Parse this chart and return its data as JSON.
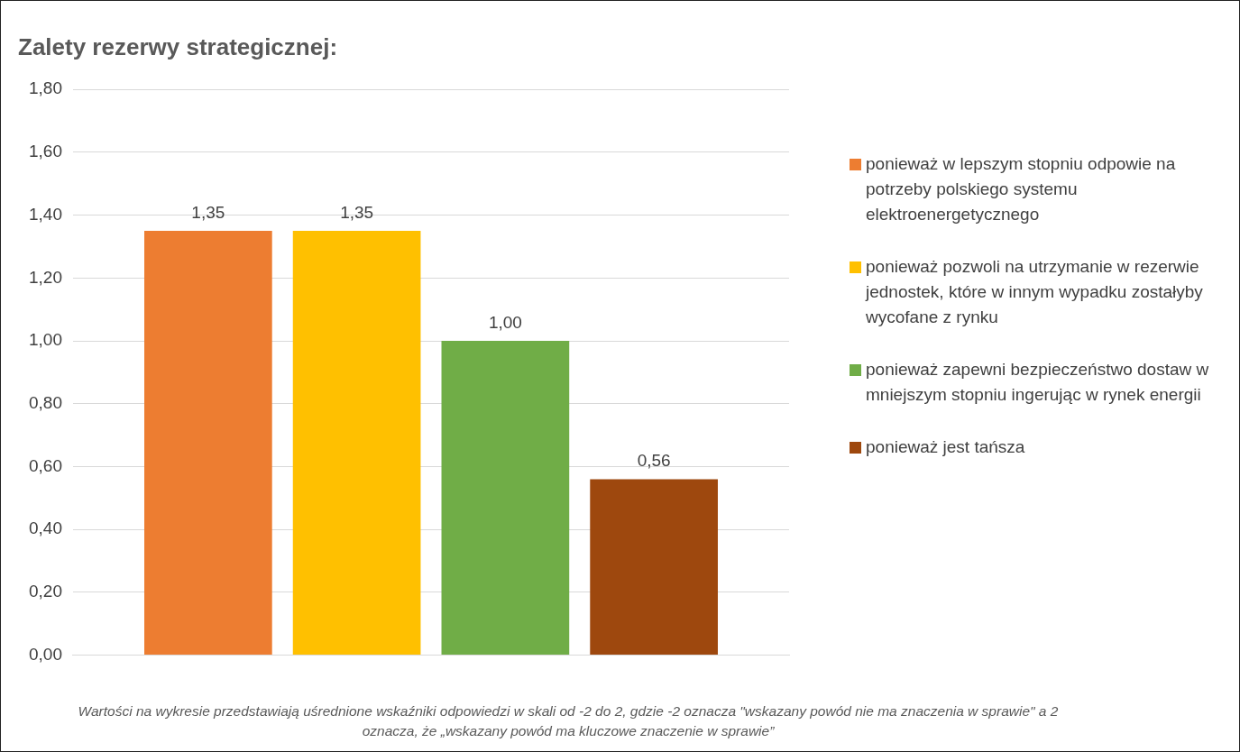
{
  "chart_data": {
    "type": "bar",
    "title": "Zalety rezerwy strategicznej:",
    "categories": [
      null
    ],
    "series": [
      {
        "name": "ponieważ w lepszym stopniu odpowie na potrzeby polskiego systemu elektroenergetycznego",
        "color": "#ed7d31",
        "values": [
          1.35
        ],
        "value_labels": [
          "1,35"
        ]
      },
      {
        "name": "ponieważ pozwoli na utrzymanie w rezerwie jednostek, które w innym wypadku zostałyby wycofane z rynku",
        "color": "#ffc000",
        "values": [
          1.35
        ],
        "value_labels": [
          "1,35"
        ]
      },
      {
        "name": "ponieważ zapewni bezpieczeństwo dostaw w mniejszym stopniu ingerując w rynek energii",
        "color": "#70ad47",
        "values": [
          1.0
        ],
        "value_labels": [
          "1,00"
        ]
      },
      {
        "name": "ponieważ jest tańsza",
        "color": "#9e480e",
        "values": [
          0.56
        ],
        "value_labels": [
          "0,56"
        ]
      }
    ],
    "ylim": [
      0,
      1.8
    ],
    "yticks": [
      {
        "value": 0,
        "label": "0,00"
      },
      {
        "value": 0.2,
        "label": "0,20"
      },
      {
        "value": 0.4,
        "label": "0,40"
      },
      {
        "value": 0.6,
        "label": "0,60"
      },
      {
        "value": 0.8,
        "label": "0,80"
      },
      {
        "value": 1.0,
        "label": "1,00"
      },
      {
        "value": 1.2,
        "label": "1,20"
      },
      {
        "value": 1.4,
        "label": "1,40"
      },
      {
        "value": 1.6,
        "label": "1,60"
      },
      {
        "value": 1.8,
        "label": "1,80"
      }
    ],
    "grid": "y",
    "legend": "right",
    "annotations": [
      "Wartości na wykresie przedstawiają uśrednione wskaźniki odpowiedzi w skali od -2 do 2, gdzie -2 oznacza \"wskazany powód nie ma znaczenia w sprawie\" a 2 oznacza, że „wskazany powód ma kluczowe znaczenie w sprawie”"
    ]
  }
}
